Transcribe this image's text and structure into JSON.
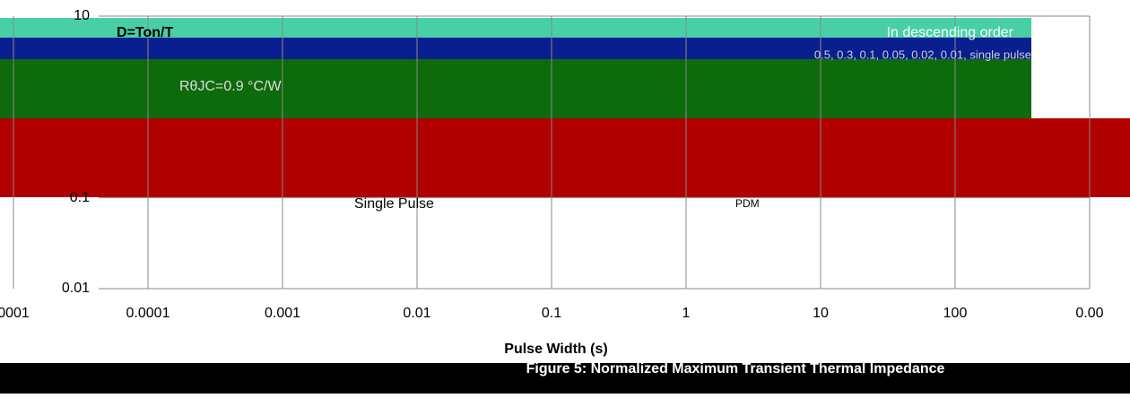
{
  "chart_data": {
    "type": "line",
    "title": "Figure 5: Normalized Maximum Transient Thermal Impedance",
    "x_label": "Pulse Width (s)",
    "annotations": [
      "D=Ton/T",
      "In descending order",
      "0.5, 0.3, 0.1, 0.05, 0.02, 0.01, single pulse",
      "RθJC=0.9 °C/W",
      "Single Pulse",
      "PDM"
    ],
    "x_scale": "log",
    "y_scale": "log",
    "xlim": [
      1e-05,
      1000
    ],
    "xticks": [
      {
        "value": 1e-05,
        "label": "0001"
      },
      0.0001,
      0.001,
      0.01,
      0.1,
      1,
      10,
      100,
      {
        "value": 1000,
        "label": "0.00"
      }
    ],
    "ylim": [
      0.01,
      10
    ],
    "yticks": [
      0.01,
      0.1,
      10
    ],
    "grid": true
  }
}
